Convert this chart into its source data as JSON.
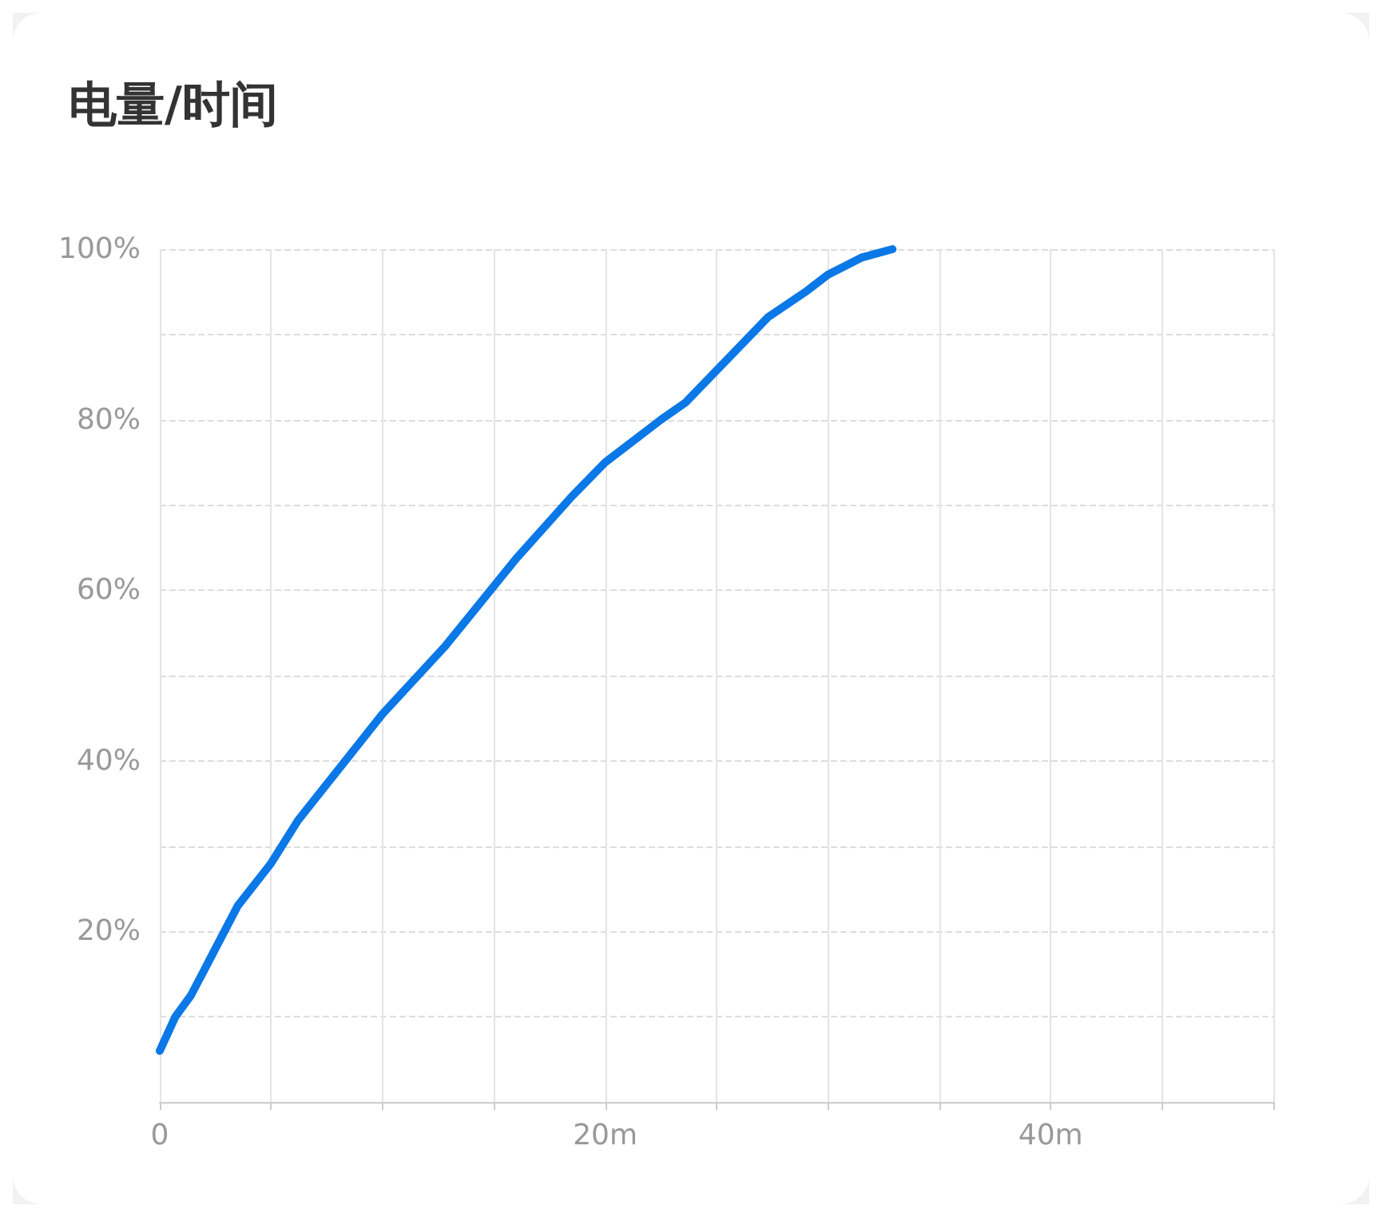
{
  "chart_data": {
    "type": "line",
    "title": "电量/时间",
    "x": [
      0,
      0.7,
      1.4,
      3.5,
      5,
      6.2,
      10,
      12.8,
      16,
      18.5,
      20,
      22.5,
      23.6,
      27.3,
      29,
      30,
      31.5,
      32.9
    ],
    "series": [
      {
        "color": "#0a78e6",
        "values": [
          6,
          10,
          12.5,
          23,
          28,
          33,
          45.5,
          53.4,
          63.7,
          71,
          75,
          80,
          82,
          92,
          95,
          97,
          99,
          100
        ]
      }
    ],
    "xlim": [
      0,
      50
    ],
    "ylim": [
      0,
      100
    ],
    "xticks": [
      0,
      {
        "value": 5,
        "label": null
      },
      {
        "value": 10,
        "label": null
      },
      {
        "value": 15,
        "label": null
      },
      {
        "value": 20,
        "label": "20m"
      },
      {
        "value": 25,
        "label": null
      },
      {
        "value": 30,
        "label": null
      },
      {
        "value": 35,
        "label": null
      },
      {
        "value": 40,
        "label": "40m"
      },
      {
        "value": 45,
        "label": null
      },
      {
        "value": 50,
        "label": null
      }
    ],
    "yticks": [
      {
        "value": 0,
        "label": null
      },
      {
        "value": 10,
        "label": null
      },
      {
        "value": 20,
        "label": "20%"
      },
      {
        "value": 30,
        "label": null
      },
      {
        "value": 40,
        "label": "40%"
      },
      {
        "value": 50,
        "label": null
      },
      {
        "value": 60,
        "label": "60%"
      },
      {
        "value": 70,
        "label": null
      },
      {
        "value": 80,
        "label": "80%"
      },
      {
        "value": 90,
        "label": null
      },
      {
        "value": 100,
        "label": "100%"
      }
    ],
    "grid": true,
    "marker": "none",
    "line_style": "solid"
  }
}
